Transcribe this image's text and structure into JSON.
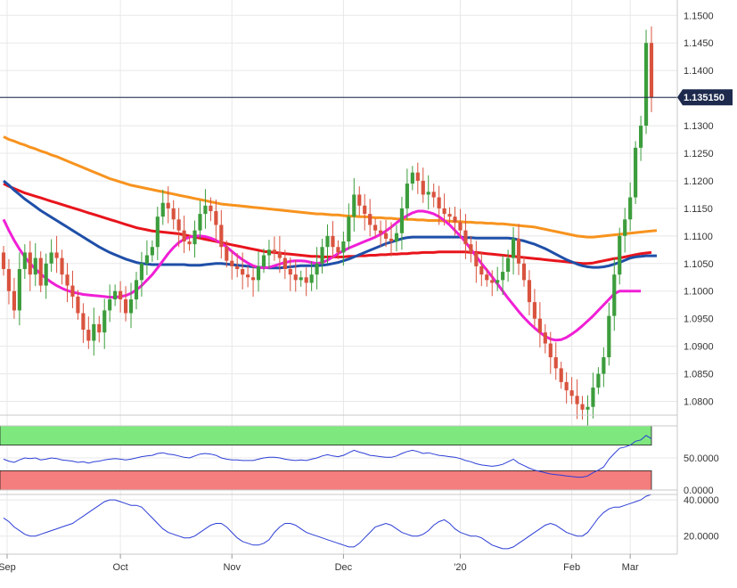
{
  "colors": {
    "up": "#3c9d3c",
    "down": "#d9533e",
    "sma_orange": "#f7931e",
    "sma_red": "#e8141c",
    "sma_blue": "#1f4fa8",
    "sma_magenta": "#f01fd6",
    "rsi_green_zone": "#7ee87e",
    "rsi_red_zone": "#f47d7d",
    "line_blue": "#2c3ed6",
    "price_tag": "#1d2a4d"
  },
  "chart_data": [
    {
      "type": "candlestick",
      "instrument": "",
      "x_labels": [
        "Sep",
        "Oct",
        "Nov",
        "Dec",
        "'20",
        "Feb",
        "Mar"
      ],
      "ylim": [
        1.0775,
        1.1515
      ],
      "y_ticks": [
        "1.1500",
        "1.1450",
        "1.1400",
        "1.1350",
        "1.1300",
        "1.1250",
        "1.1200",
        "1.1150",
        "1.1100",
        "1.1050",
        "1.1000",
        "1.0950",
        "1.0900",
        "1.0850",
        "1.0800"
      ],
      "current_price": "1.135150",
      "current_price_value": 1.13515,
      "closes": [
        1.104,
        1.1,
        1.0965,
        1.104,
        1.107,
        1.103,
        1.106,
        1.101,
        1.105,
        1.107,
        1.106,
        1.103,
        1.101,
        1.099,
        1.096,
        1.093,
        1.091,
        1.094,
        1.0925,
        1.0965,
        1.0985,
        1.1,
        1.0985,
        1.096,
        1.0985,
        1.102,
        1.105,
        1.1065,
        1.108,
        1.1135,
        1.116,
        1.115,
        1.113,
        1.111,
        1.109,
        1.1085,
        1.111,
        1.114,
        1.1155,
        1.1145,
        1.112,
        1.108,
        1.1055,
        1.1045,
        1.104,
        1.103,
        1.1025,
        1.102,
        1.1045,
        1.1065,
        1.1075,
        1.107,
        1.106,
        1.104,
        1.103,
        1.102,
        1.1025,
        1.1015,
        1.103,
        1.105,
        1.108,
        1.11,
        1.108,
        1.107,
        1.109,
        1.1135,
        1.1175,
        1.1155,
        1.114,
        1.112,
        1.111,
        1.1105,
        1.1095,
        1.109,
        1.1105,
        1.115,
        1.1195,
        1.1215,
        1.12,
        1.1175,
        1.118,
        1.117,
        1.115,
        1.114,
        1.1135,
        1.1125,
        1.111,
        1.1085,
        1.107,
        1.1045,
        1.103,
        1.102,
        1.1015,
        1.102,
        1.1035,
        1.106,
        1.1095,
        1.105,
        1.102,
        1.098,
        1.095,
        1.0925,
        1.0905,
        1.088,
        1.086,
        1.0835,
        1.082,
        1.081,
        1.0795,
        1.0785,
        1.079,
        1.0825,
        1.085,
        1.088,
        1.0955,
        1.103,
        1.11,
        1.113,
        1.117,
        1.126,
        1.13,
        1.145,
        1.13515
      ],
      "series": [
        {
          "name": "",
          "color_key": "sma_orange",
          "values": [
            1.128,
            1.1275,
            1.1272,
            1.1268,
            1.1265,
            1.1261,
            1.1258,
            1.1254,
            1.1251,
            1.1247,
            1.1244,
            1.124,
            1.1236,
            1.1232,
            1.1228,
            1.1224,
            1.122,
            1.1216,
            1.1212,
            1.1208,
            1.1204,
            1.1201,
            1.1198,
            1.1195,
            1.1192,
            1.119,
            1.1188,
            1.1186,
            1.1184,
            1.1182,
            1.118,
            1.1178,
            1.1176,
            1.1174,
            1.1172,
            1.117,
            1.1168,
            1.1166,
            1.1164,
            1.1162,
            1.116,
            1.1158,
            1.1157,
            1.1156,
            1.1155,
            1.1154,
            1.1153,
            1.1152,
            1.1151,
            1.115,
            1.1149,
            1.1148,
            1.1147,
            1.1146,
            1.1145,
            1.1144,
            1.1143,
            1.1142,
            1.1141,
            1.114,
            1.114,
            1.1139,
            1.1138,
            1.1138,
            1.1137,
            1.1136,
            1.1136,
            1.1135,
            1.1135,
            1.1134,
            1.1133,
            1.1133,
            1.1132,
            1.1132,
            1.1131,
            1.1131,
            1.113,
            1.113,
            1.1129,
            1.1129,
            1.1128,
            1.1128,
            1.1128,
            1.1127,
            1.1127,
            1.1126,
            1.1126,
            1.1125,
            1.1125,
            1.1124,
            1.1124,
            1.1123,
            1.1123,
            1.1122,
            1.1122,
            1.1121,
            1.112,
            1.1119,
            1.1118,
            1.1117,
            1.1116,
            1.1114,
            1.1112,
            1.111,
            1.1108,
            1.1106,
            1.1104,
            1.1102,
            1.11,
            1.1099,
            1.1098,
            1.1098,
            1.1099,
            1.11,
            1.1101,
            1.1102,
            1.1103,
            1.1104,
            1.1105,
            1.1106,
            1.1107,
            1.1108,
            1.1109,
            1.111
          ]
        },
        {
          "name": "",
          "color_key": "sma_red",
          "values": [
            1.1195,
            1.119,
            1.1186,
            1.1182,
            1.1178,
            1.1175,
            1.1172,
            1.1169,
            1.1166,
            1.1163,
            1.116,
            1.1157,
            1.1154,
            1.1151,
            1.1148,
            1.1145,
            1.1142,
            1.1139,
            1.1136,
            1.1133,
            1.113,
            1.1127,
            1.1124,
            1.1121,
            1.1118,
            1.1115,
            1.1113,
            1.1111,
            1.1109,
            1.1108,
            1.1107,
            1.1106,
            1.1105,
            1.1104,
            1.1102,
            1.11,
            1.1098,
            1.1096,
            1.1094,
            1.1092,
            1.109,
            1.1088,
            1.1086,
            1.1084,
            1.1082,
            1.108,
            1.1078,
            1.1076,
            1.1074,
            1.1072,
            1.1071,
            1.107,
            1.1069,
            1.1068,
            1.1067,
            1.1066,
            1.1065,
            1.1064,
            1.1063,
            1.1063,
            1.1062,
            1.1062,
            1.1062,
            1.1062,
            1.1062,
            1.1063,
            1.1063,
            1.1064,
            1.1064,
            1.1065,
            1.1065,
            1.1066,
            1.1066,
            1.1067,
            1.1067,
            1.1068,
            1.1068,
            1.1069,
            1.1069,
            1.107,
            1.107,
            1.107,
            1.1071,
            1.1071,
            1.1071,
            1.1071,
            1.1071,
            1.1071,
            1.107,
            1.107,
            1.1069,
            1.1068,
            1.1067,
            1.1066,
            1.1065,
            1.1064,
            1.1063,
            1.1062,
            1.1061,
            1.106,
            1.1059,
            1.1058,
            1.1057,
            1.1056,
            1.1055,
            1.1054,
            1.1053,
            1.1052,
            1.1051,
            1.105,
            1.105,
            1.1051,
            1.1053,
            1.1055,
            1.1057,
            1.1059,
            1.106,
            1.1062,
            1.1064,
            1.1066,
            1.1068,
            1.1069,
            1.107
          ]
        },
        {
          "name": "",
          "color_key": "sma_blue",
          "values": [
            1.12,
            1.1192,
            1.1183,
            1.1175,
            1.1167,
            1.116,
            1.1153,
            1.1146,
            1.114,
            1.1134,
            1.1128,
            1.1122,
            1.1116,
            1.111,
            1.1104,
            1.1098,
            1.1092,
            1.1086,
            1.108,
            1.1075,
            1.107,
            1.1066,
            1.1062,
            1.1058,
            1.1055,
            1.1052,
            1.105,
            1.1049,
            1.1048,
            1.1048,
            1.1048,
            1.1048,
            1.1048,
            1.1048,
            1.1048,
            1.1047,
            1.1047,
            1.1047,
            1.1048,
            1.1049,
            1.105,
            1.105,
            1.1049,
            1.1048,
            1.1047,
            1.1046,
            1.1045,
            1.1044,
            1.1043,
            1.1043,
            1.1042,
            1.1042,
            1.1042,
            1.1043,
            1.1044,
            1.1045,
            1.1046,
            1.1046,
            1.1046,
            1.1046,
            1.1047,
            1.1048,
            1.105,
            1.1052,
            1.1055,
            1.1058,
            1.1062,
            1.1066,
            1.107,
            1.1074,
            1.1078,
            1.1082,
            1.1086,
            1.1089,
            1.1092,
            1.1095,
            1.1097,
            1.1098,
            1.1098,
            1.1098,
            1.1098,
            1.1098,
            1.1098,
            1.1098,
            1.1098,
            1.1098,
            1.1098,
            1.1097,
            1.1097,
            1.1096,
            1.1096,
            1.1096,
            1.1096,
            1.1096,
            1.1096,
            1.1096,
            1.1095,
            1.1093,
            1.1091,
            1.1088,
            1.1085,
            1.1081,
            1.1077,
            1.1072,
            1.1067,
            1.1062,
            1.1057,
            1.1053,
            1.1049,
            1.1046,
            1.1044,
            1.1043,
            1.1043,
            1.1044,
            1.1046,
            1.1049,
            1.1052,
            1.1056,
            1.106,
            1.1062,
            1.1063,
            1.1064,
            1.1064,
            1.1064
          ]
        },
        {
          "name": "",
          "color_key": "sma_magenta",
          "values": [
            1.113,
            1.111,
            1.1092,
            1.1076,
            1.1062,
            1.105,
            1.104,
            1.1031,
            1.1023,
            1.1016,
            1.101,
            1.1005,
            1.1001,
            1.0998,
            1.0996,
            1.0994,
            1.0993,
            1.0992,
            1.0991,
            1.099,
            1.0989,
            1.0989,
            1.099,
            1.0992,
            1.0996,
            1.1002,
            1.101,
            1.102,
            1.103,
            1.1042,
            1.1055,
            1.1068,
            1.1079,
            1.1088,
            1.1094,
            1.1098,
            1.11,
            1.11,
            1.1099,
            1.1096,
            1.1092,
            1.1087,
            1.108,
            1.1072,
            1.1064,
            1.1057,
            1.1051,
            1.1046,
            1.1043,
            1.1042,
            1.1043,
            1.1046,
            1.1049,
            1.1052,
            1.1054,
            1.1055,
            1.1055,
            1.1054,
            1.1052,
            1.105,
            1.1052,
            1.1056,
            1.1062,
            1.1068,
            1.1073,
            1.1078,
            1.1082,
            1.1086,
            1.109,
            1.1094,
            1.1098,
            1.1103,
            1.1109,
            1.1116,
            1.1124,
            1.1131,
            1.1137,
            1.1142,
            1.1145,
            1.1145,
            1.1143,
            1.114,
            1.1135,
            1.1128,
            1.112,
            1.111,
            1.11,
            1.1089,
            1.1076,
            1.1063,
            1.105,
            1.1038,
            1.1026,
            1.1013,
            1.1,
            1.0987,
            1.0975,
            1.0963,
            1.0952,
            1.0942,
            1.0933,
            1.0925,
            1.0918,
            1.0913,
            1.0911,
            1.0912,
            1.0916,
            1.0922,
            1.0929,
            1.0937,
            1.0946,
            1.0955,
            1.0965,
            1.0975,
            1.0985,
            1.0995,
            1.1,
            1.1,
            1.1,
            1.1,
            1.1
          ]
        }
      ]
    },
    {
      "type": "line",
      "y_ticks": [
        "50.0000",
        "0.0000"
      ],
      "ylim": [
        0,
        100
      ],
      "zones": [
        {
          "color_key": "rsi_green_zone",
          "from": 70,
          "to": 100
        },
        {
          "color_key": "rsi_red_zone",
          "from": 0,
          "to": 30
        }
      ],
      "series": [
        {
          "name": "",
          "color_key": "line_blue",
          "values": [
            48,
            45,
            43,
            47,
            50,
            49,
            50,
            47,
            48,
            50,
            49,
            47,
            46,
            45,
            43,
            44,
            42,
            44,
            45,
            47,
            48,
            49,
            48,
            47,
            48,
            50,
            52,
            53,
            54,
            57,
            58,
            56,
            55,
            53,
            51,
            50,
            53,
            56,
            57,
            56,
            54,
            50,
            48,
            47,
            47,
            46,
            46,
            46,
            48,
            50,
            51,
            51,
            50,
            48,
            47,
            46,
            47,
            46,
            48,
            50,
            53,
            55,
            53,
            52,
            54,
            58,
            62,
            59,
            57,
            54,
            53,
            52,
            51,
            51,
            53,
            57,
            60,
            62,
            60,
            57,
            58,
            56,
            54,
            53,
            52,
            51,
            49,
            46,
            44,
            41,
            39,
            38,
            37,
            38,
            40,
            44,
            48,
            42,
            38,
            34,
            31,
            29,
            27,
            25,
            24,
            23,
            22,
            21,
            20,
            20,
            22,
            27,
            31,
            36,
            48,
            57,
            65,
            67,
            70,
            76,
            78,
            85,
            80
          ]
        }
      ]
    },
    {
      "type": "line",
      "y_ticks": [
        "40.0000",
        "20.0000"
      ],
      "ylim": [
        10,
        43
      ],
      "series": [
        {
          "name": "",
          "color_key": "line_blue",
          "values": [
            30,
            28,
            25,
            23,
            21,
            20,
            20,
            21,
            22,
            23,
            24,
            25,
            26,
            27,
            29,
            31,
            33,
            35,
            37,
            39,
            40,
            40,
            39,
            38,
            37,
            37,
            36,
            33,
            30,
            27,
            24,
            22,
            21,
            20,
            19,
            19,
            20,
            22,
            24,
            26,
            27,
            27,
            25,
            22,
            19,
            17,
            16,
            15,
            15,
            16,
            18,
            22,
            25,
            27,
            27,
            26,
            24,
            22,
            21,
            20,
            19,
            18,
            17,
            16,
            15,
            14,
            14,
            16,
            19,
            22,
            25,
            26,
            27,
            26,
            24,
            22,
            21,
            20,
            20,
            21,
            23,
            26,
            28,
            29,
            27,
            24,
            22,
            21,
            20,
            20,
            19,
            17,
            15,
            14,
            13,
            13,
            14,
            16,
            18,
            20,
            22,
            24,
            26,
            27,
            26,
            24,
            22,
            21,
            20,
            20,
            22,
            26,
            30,
            33,
            35,
            36,
            36,
            37,
            38,
            39,
            40,
            42,
            43
          ]
        }
      ]
    }
  ]
}
